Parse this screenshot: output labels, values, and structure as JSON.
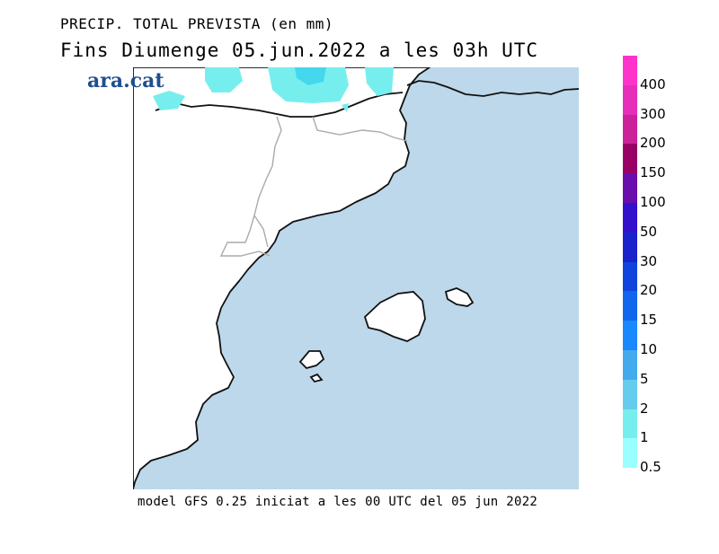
{
  "title": {
    "line1": "PRECIP. TOTAL PREVISTA (en mm)",
    "line2": "Fins Diumenge 05.jun.2022 a les 03h UTC"
  },
  "brand": "ara.cat",
  "footer": "model GFS 0.25 iniciat a les 00 UTC del 05 jun 2022",
  "legend": {
    "labels": [
      "400",
      "300",
      "200",
      "150",
      "100",
      "50",
      "30",
      "20",
      "15",
      "10",
      "5",
      "2",
      "1",
      "0.5"
    ],
    "colors": [
      "#ff33cc",
      "#e62eb8",
      "#cc2299",
      "#990066",
      "#6a0dad",
      "#3311cc",
      "#1a22cc",
      "#1144dd",
      "#1166ee",
      "#1a88ff",
      "#44aaee",
      "#66ccee",
      "#77eeee",
      "#99ffff"
    ]
  },
  "map": {
    "sea_color": "#bcd8ea",
    "land_color": "#ffffff",
    "precip_color": "#77eeee"
  }
}
